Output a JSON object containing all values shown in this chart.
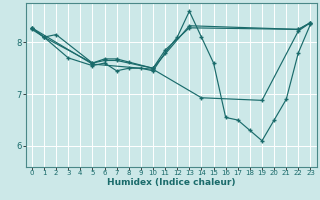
{
  "xlabel": "Humidex (Indice chaleur)",
  "xlim": [
    -0.5,
    23.5
  ],
  "ylim": [
    5.6,
    8.75
  ],
  "yticks": [
    6,
    7,
    8
  ],
  "xticks": [
    0,
    1,
    2,
    3,
    4,
    5,
    6,
    7,
    8,
    9,
    10,
    11,
    12,
    13,
    14,
    15,
    16,
    17,
    18,
    19,
    20,
    21,
    22,
    23
  ],
  "bg_color": "#cce8e8",
  "line_color": "#1a6b6b",
  "grid_color": "#ffffff",
  "series": [
    {
      "x": [
        0,
        1,
        3,
        5,
        6,
        7,
        8,
        9,
        10,
        11,
        12,
        13,
        14,
        15,
        16,
        17,
        18,
        19,
        20,
        21,
        22,
        23
      ],
      "y": [
        8.25,
        8.1,
        7.7,
        7.55,
        7.6,
        7.45,
        7.5,
        7.5,
        7.45,
        7.8,
        8.1,
        8.6,
        8.1,
        7.6,
        6.55,
        6.5,
        6.3,
        6.1,
        6.5,
        6.9,
        7.8,
        8.35
      ]
    },
    {
      "x": [
        0,
        1,
        2,
        5,
        6,
        7,
        8,
        10,
        11,
        13,
        22,
        23
      ],
      "y": [
        8.28,
        8.1,
        8.15,
        7.6,
        7.68,
        7.68,
        7.62,
        7.5,
        7.85,
        8.28,
        8.25,
        8.38
      ]
    },
    {
      "x": [
        0,
        1,
        5,
        6,
        7,
        10,
        13,
        22,
        23
      ],
      "y": [
        8.28,
        8.1,
        7.6,
        7.65,
        7.65,
        7.5,
        8.32,
        8.25,
        8.38
      ]
    },
    {
      "x": [
        0,
        5,
        10,
        14,
        19,
        22,
        23
      ],
      "y": [
        8.28,
        7.58,
        7.48,
        6.93,
        6.88,
        8.22,
        8.38
      ]
    }
  ]
}
